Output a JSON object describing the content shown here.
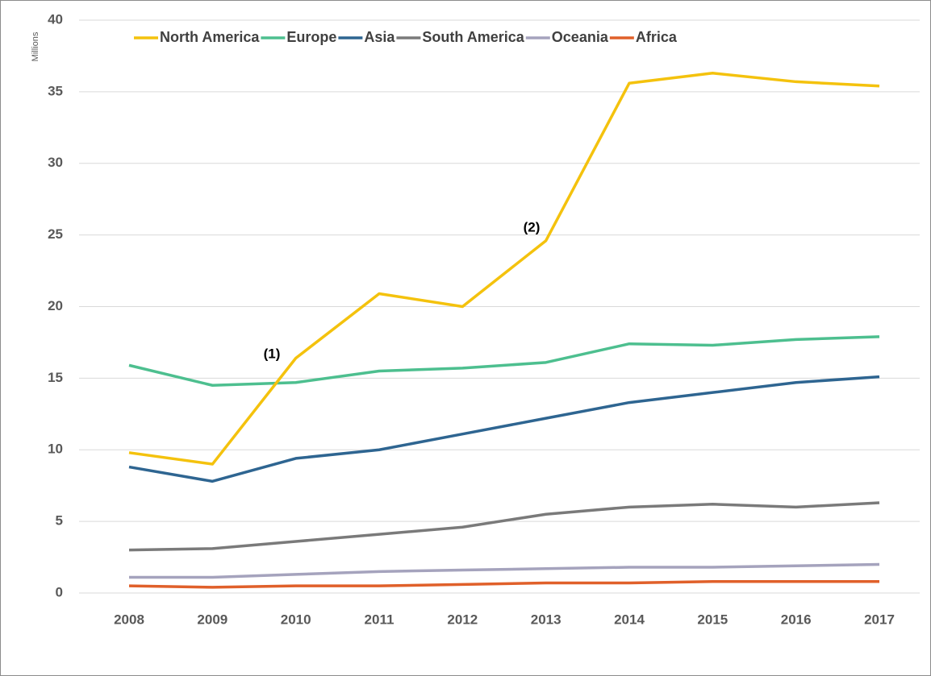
{
  "chart_data": {
    "type": "line",
    "y_label": "Millions",
    "categories": [
      "2008",
      "2009",
      "2010",
      "2011",
      "2012",
      "2013",
      "2014",
      "2015",
      "2016",
      "2017"
    ],
    "series": [
      {
        "name": "North America",
        "color": "#f4c20d",
        "values": [
          9.8,
          9.0,
          16.4,
          20.9,
          20.0,
          24.6,
          35.6,
          36.3,
          35.7,
          35.4
        ]
      },
      {
        "name": "Europe",
        "color": "#4dbf8f",
        "values": [
          15.9,
          14.5,
          14.7,
          15.5,
          15.7,
          16.1,
          17.4,
          17.3,
          17.7,
          17.9
        ]
      },
      {
        "name": "Asia",
        "color": "#2e6591",
        "values": [
          8.8,
          7.8,
          9.4,
          10.0,
          11.1,
          12.2,
          13.3,
          14.0,
          14.7,
          15.1
        ]
      },
      {
        "name": "South America",
        "color": "#7a7a7a",
        "values": [
          3.0,
          3.1,
          3.6,
          4.1,
          4.6,
          5.5,
          6.0,
          6.2,
          6.0,
          6.3
        ]
      },
      {
        "name": "Oceania",
        "color": "#a5a3bd",
        "values": [
          1.1,
          1.1,
          1.3,
          1.5,
          1.6,
          1.7,
          1.8,
          1.8,
          1.9,
          2.0
        ]
      },
      {
        "name": "Africa",
        "color": "#e0602a",
        "values": [
          0.5,
          0.4,
          0.5,
          0.5,
          0.6,
          0.7,
          0.7,
          0.8,
          0.8,
          0.8
        ]
      }
    ],
    "annotations": [
      "(1)",
      "(2)"
    ],
    "ylim": [
      0,
      40
    ],
    "yticks": [
      0,
      5,
      10,
      15,
      20,
      25,
      30,
      35,
      40
    ],
    "grid": true,
    "legend": "top"
  }
}
